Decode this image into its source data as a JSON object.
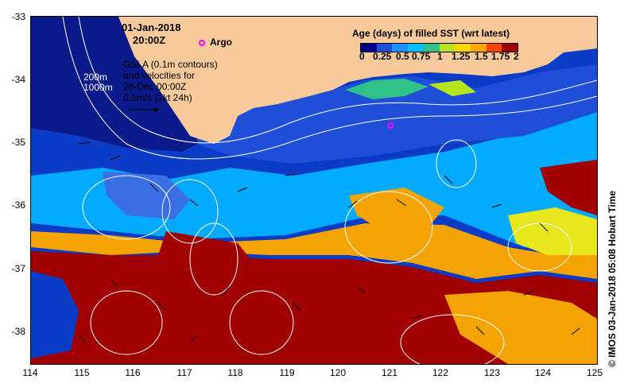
{
  "map": {
    "date": "01-Jan-2018",
    "time": "20:00Z",
    "argo_label": "Argo",
    "legend_title": "Age (days) of filled SST (wrt latest)",
    "legend_ticks": [
      "0",
      "0.25",
      "0.5",
      "0.75",
      "1",
      "1.25",
      "1.5",
      "1.75",
      "2"
    ],
    "legend_colors": [
      "#00008b",
      "#1f4fd8",
      "#1e90ff",
      "#00bfff",
      "#2ec28a",
      "#b5e61d",
      "#ffd700",
      "#ffa500",
      "#ff4500",
      "#a00000"
    ],
    "contour_200m": "200m",
    "contour_1000m": "1000m",
    "gsla_lines": [
      "GSLA (0.1m contours)",
      "and velocities for",
      "28-Dec 00:00Z",
      "0.5m/s (1kt 24h)"
    ],
    "lat_labels": [
      "-33",
      "-34",
      "-35",
      "-36",
      "-37",
      "-38"
    ],
    "lon_labels": [
      "114",
      "115",
      "116",
      "117",
      "118",
      "119",
      "120",
      "121",
      "122",
      "123",
      "124",
      "125"
    ],
    "credit": "© IMOS 03-Jan-2018 05:08 Hobart Time",
    "colors": {
      "land": "#f8c99a",
      "deep_blue": "#0b3cc8",
      "navy": "#0a1a8a",
      "sky": "#00aaff",
      "orange": "#f5a300",
      "dark_red": "#a00000",
      "argo_marker": "#ff00ff"
    }
  }
}
